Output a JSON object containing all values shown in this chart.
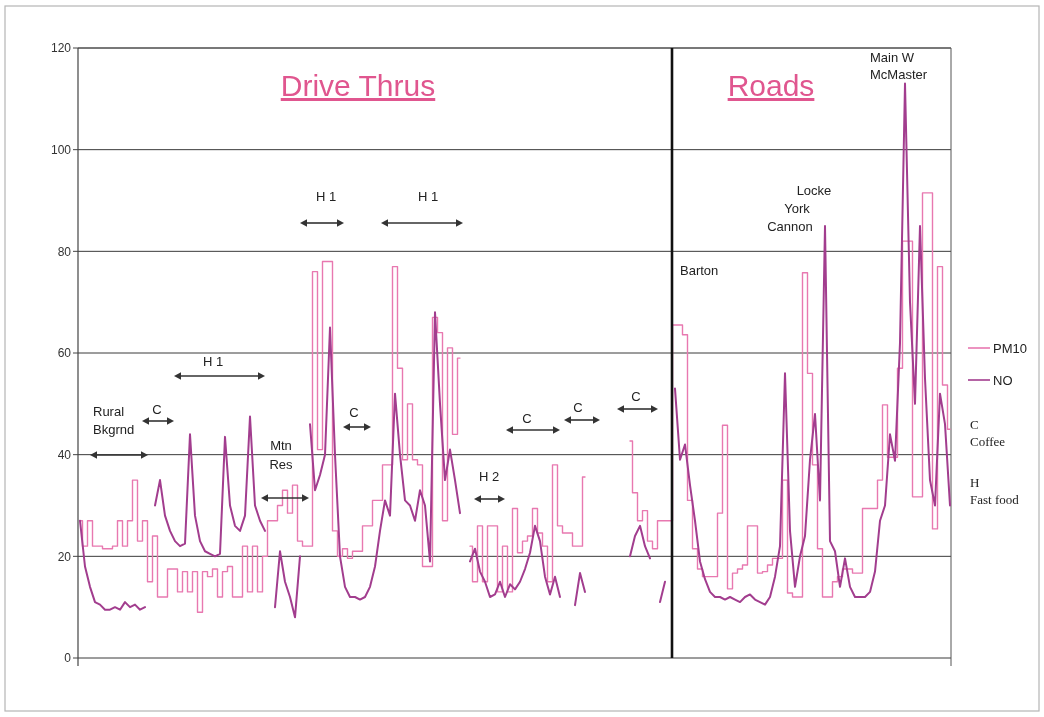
{
  "chart_data": {
    "type": "line",
    "categories": [
      null,
      null,
      null,
      null,
      null,
      null,
      null,
      null,
      null,
      null,
      null,
      null,
      null,
      null,
      null,
      null,
      null,
      null,
      null,
      null,
      null,
      null,
      null,
      null,
      null,
      null,
      null,
      null,
      null,
      null,
      null,
      null,
      null,
      null,
      null,
      null,
      null,
      null,
      null,
      null,
      null,
      null,
      null,
      null,
      null,
      null,
      null,
      null,
      null,
      null,
      null,
      null,
      null,
      null,
      null,
      null,
      null,
      null,
      null,
      null,
      null,
      null,
      null,
      null,
      null,
      null,
      null,
      null,
      null,
      null,
      null,
      null,
      null,
      null,
      null,
      null,
      null,
      null,
      null,
      null,
      null,
      null,
      null,
      null,
      null,
      null,
      null,
      null,
      null,
      null,
      null,
      null,
      null,
      null,
      null,
      null,
      null,
      null,
      null,
      null,
      null,
      null,
      null,
      null,
      null,
      null,
      null,
      null,
      null,
      null,
      null,
      null,
      null,
      null,
      null,
      null,
      null,
      null,
      null,
      null,
      null,
      null,
      null,
      null,
      null,
      null,
      null,
      null,
      null,
      null,
      null,
      null,
      null,
      null,
      null,
      null,
      null,
      null,
      null,
      null,
      null,
      null,
      null,
      null,
      null,
      null,
      null,
      null,
      null,
      null,
      null,
      null,
      null,
      null,
      null,
      null,
      null,
      null,
      null,
      null,
      null,
      null,
      null,
      null,
      null,
      null,
      null,
      null,
      null,
      null,
      null,
      null,
      null,
      null,
      null
    ],
    "series": [
      {
        "name": "PM10",
        "type": "step",
        "color": "#e878b0",
        "values": [
          27,
          22,
          27,
          22,
          22,
          21.5,
          21.5,
          22,
          27,
          22,
          27,
          35,
          23,
          27,
          15,
          24,
          12,
          12,
          17.5,
          17.5,
          13,
          17,
          13,
          17,
          9,
          17,
          16,
          17.5,
          12,
          17,
          18,
          12,
          12,
          22,
          13,
          22,
          13,
          20,
          27,
          27,
          30,
          33,
          28.5,
          34,
          23,
          22,
          22,
          76,
          41,
          78,
          78,
          25,
          20,
          21.5,
          19.6,
          21,
          21,
          26,
          26,
          31,
          31,
          38,
          38,
          77,
          57,
          39,
          50,
          39,
          38,
          18,
          18,
          67,
          64,
          27,
          61,
          44,
          59,
          null,
          22,
          15,
          26,
          15,
          26,
          26,
          13,
          22,
          13,
          29.4,
          20.7,
          23,
          24,
          29.4,
          24.6,
          22,
          15,
          38,
          26,
          24.6,
          24.6,
          22,
          22,
          35.6,
          null,
          null,
          null,
          null,
          null,
          null,
          null,
          null,
          42.7,
          32.5,
          27,
          29,
          23,
          21.5,
          27,
          27,
          27,
          65.5,
          65.5,
          63.6,
          31,
          21.5,
          17.5,
          16,
          16,
          16,
          28.5,
          45.8,
          13.6,
          16.7,
          17.5,
          18.3,
          26,
          26,
          16.7,
          17,
          18.3,
          19.6,
          19.6,
          35,
          12.8,
          12,
          12,
          75.8,
          56,
          38,
          21.5,
          12,
          12,
          15,
          16,
          17.5,
          17.5,
          16.7,
          16.7,
          29.4,
          29.4,
          29.4,
          35,
          49.8,
          39.5,
          39.5,
          57,
          82,
          82,
          31.7,
          31.7,
          91.5,
          91.5,
          25.4,
          77,
          53.7,
          45
        ]
      },
      {
        "name": "NO",
        "type": "line",
        "color": "#a23d8e",
        "values": [
          27,
          18,
          14,
          11,
          10.5,
          9.5,
          9.5,
          10,
          9.5,
          11,
          10,
          10.5,
          9.5,
          10,
          null,
          30,
          35,
          28,
          25,
          23,
          22,
          22.5,
          44,
          28,
          23,
          21,
          20.5,
          20,
          20.5,
          43.5,
          30,
          26,
          25,
          28,
          47.5,
          30,
          27,
          25,
          null,
          10,
          21,
          15,
          12,
          8,
          20,
          null,
          46,
          33,
          36,
          40,
          65,
          40,
          20,
          14,
          12,
          12,
          11.5,
          12,
          14,
          18,
          25,
          31,
          28,
          52,
          40,
          31,
          30,
          27,
          33,
          30,
          19,
          68,
          50,
          35,
          41,
          35,
          28.5,
          null,
          19,
          21.5,
          17,
          15,
          12,
          12.5,
          15,
          12,
          14.5,
          13.5,
          15,
          17.5,
          20.7,
          26,
          23,
          16,
          12.5,
          16,
          12,
          null,
          null,
          10.4,
          16.7,
          13,
          null,
          null,
          null,
          null,
          null,
          null,
          null,
          null,
          20,
          24,
          26,
          22,
          19.6,
          null,
          11,
          15,
          null,
          53,
          39,
          42,
          34,
          27,
          19,
          15.5,
          13,
          12,
          12,
          11.5,
          12,
          11.5,
          11,
          12,
          12.5,
          11.5,
          11,
          10.5,
          12,
          16,
          22,
          56,
          25,
          14,
          20,
          24,
          39,
          48,
          31,
          85,
          23,
          21,
          14,
          19.6,
          14,
          12,
          12,
          12,
          13,
          17,
          27,
          30,
          44,
          38.8,
          62,
          113,
          70,
          50,
          85,
          55,
          35,
          30,
          52,
          46,
          30
        ]
      }
    ],
    "ylim": [
      0,
      120
    ],
    "yticks": [
      0,
      20,
      40,
      60,
      80,
      100,
      120
    ],
    "grid": "y",
    "legend": "right",
    "tick_labels": "y",
    "annotations": [
      "Drive Thrus",
      "Roads",
      "Rural Bkgrnd",
      "C",
      "H 1",
      "Mtn Res",
      "H 1",
      "H 1",
      "C",
      "H 2",
      "C",
      "C",
      "C",
      "Barton",
      "Locke York Cannon",
      "Main W McMaster",
      "C Coffee",
      "H Fast food"
    ]
  }
}
